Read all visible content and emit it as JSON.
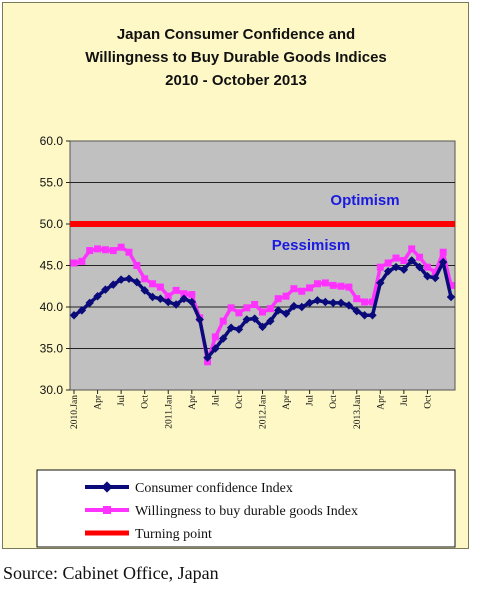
{
  "title_lines": [
    "Japan Consumer Confidence and",
    "Willingness to Buy Durable Goods Indices",
    "2010 -  October 2013"
  ],
  "annotations": {
    "optimism": "Optimism",
    "pessimism": "Pessimism"
  },
  "source": "Source: Cabinet Office, Japan",
  "colors": {
    "background": "#fdf8c6",
    "plot_area": "#c0c0c0",
    "consumer_confidence": "#0a0a7a",
    "willingness": "#ff33ff",
    "turning_point": "#ff0000",
    "annotation_text": "#1a1ae0"
  },
  "chart_data": {
    "type": "line",
    "title": "Japan Consumer Confidence and Willingness to Buy Durable Goods Indices 2010 -  October 2013",
    "ylim": [
      30,
      60
    ],
    "y_ticks": [
      "30.0",
      "35.0",
      "40.0",
      "45.0",
      "50.0",
      "55.0",
      "60.0"
    ],
    "x_tick_labels": [
      "2010.Jan",
      "Apr",
      "Jul",
      "Oct",
      "2011.Jan",
      "Apr",
      "Jul",
      "Oct",
      "2012.Jan",
      "Apr",
      "Jul",
      "Oct",
      "2013.Jan",
      "Apr",
      "Jul",
      "Oct"
    ],
    "x_tick_positions": [
      0,
      3,
      6,
      9,
      12,
      15,
      18,
      21,
      24,
      27,
      30,
      33,
      36,
      39,
      42,
      45
    ],
    "grid": "horizontal",
    "legend_position": "bottom",
    "series": [
      {
        "name": "Consumer confidence Index",
        "marker": "diamond",
        "values": [
          39.0,
          39.6,
          40.5,
          41.3,
          42.1,
          42.7,
          43.3,
          43.4,
          43.0,
          42.0,
          41.2,
          41.0,
          40.6,
          40.3,
          41.0,
          40.6,
          38.5,
          33.9,
          35.0,
          36.2,
          37.5,
          37.3,
          38.5,
          38.6,
          37.6,
          38.3,
          39.6,
          39.2,
          40.1,
          40.0,
          40.5,
          40.8,
          40.6,
          40.5,
          40.5,
          40.2,
          39.5,
          39.0,
          39.0,
          42.9,
          44.3,
          44.8,
          44.5,
          45.6,
          44.8,
          43.7,
          43.5,
          45.4,
          41.2
        ]
      },
      {
        "name": "Willingness to buy durable goods Index",
        "marker": "square",
        "values": [
          45.3,
          45.5,
          46.8,
          47.0,
          46.9,
          46.8,
          47.2,
          46.6,
          45.0,
          43.4,
          42.8,
          42.4,
          41.3,
          42.0,
          41.6,
          41.5,
          38.7,
          33.4,
          36.4,
          38.3,
          39.9,
          39.3,
          39.9,
          40.3,
          39.4,
          39.8,
          41.0,
          41.3,
          42.2,
          41.9,
          42.3,
          42.8,
          42.9,
          42.6,
          42.5,
          42.4,
          41.0,
          40.6,
          40.6,
          44.8,
          45.3,
          45.9,
          45.6,
          47.0,
          46.0,
          44.8,
          44.2,
          46.6,
          42.6
        ]
      },
      {
        "name": "Turning point",
        "value": 50.0
      }
    ]
  }
}
